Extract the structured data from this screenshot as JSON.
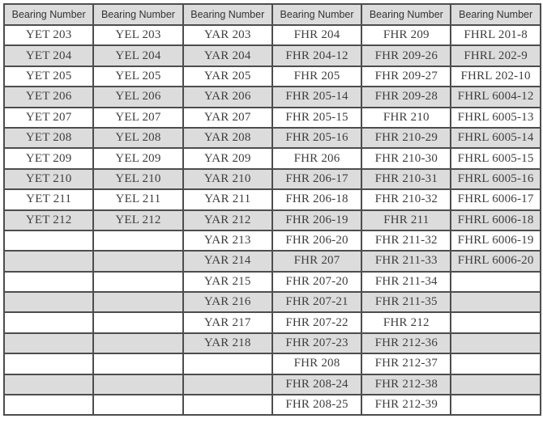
{
  "table": {
    "name": "bearing-number-table",
    "columns": 6,
    "headers": [
      "Bearing Number",
      "Bearing Number",
      "Bearing Number",
      "Bearing Number",
      "Bearing Number",
      "Bearing Number"
    ],
    "rows": [
      [
        "YET 203",
        "YEL 203",
        "YAR 203",
        "FHR 204",
        "FHR 209",
        "FHRL 201-8"
      ],
      [
        "YET 204",
        "YEL 204",
        "YAR 204",
        "FHR 204-12",
        "FHR 209-26",
        "FHRL 202-9"
      ],
      [
        "YET 205",
        "YEL 205",
        "YAR 205",
        "FHR 205",
        "FHR 209-27",
        "FHRL 202-10"
      ],
      [
        "YET 206",
        "YEL 206",
        "YAR 206",
        "FHR 205-14",
        "FHR 209-28",
        "FHRL 6004-12"
      ],
      [
        "YET 207",
        "YEL 207",
        "YAR 207",
        "FHR 205-15",
        "FHR 210",
        "FHRL 6005-13"
      ],
      [
        "YET 208",
        "YEL 208",
        "YAR 208",
        "FHR 205-16",
        "FHR 210-29",
        "FHRL 6005-14"
      ],
      [
        "YET 209",
        "YEL 209",
        "YAR 209",
        "FHR 206",
        "FHR 210-30",
        "FHRL 6005-15"
      ],
      [
        "YET 210",
        "YEL 210",
        "YAR 210",
        "FHR 206-17",
        "FHR 210-31",
        "FHRL 6005-16"
      ],
      [
        "YET 211",
        "YEL 211",
        "YAR 211",
        "FHR 206-18",
        "FHR 210-32",
        "FHRL 6006-17"
      ],
      [
        "YET 212",
        "YEL 212",
        "YAR 212",
        "FHR 206-19",
        "FHR 211",
        "FHRL 6006-18"
      ],
      [
        "",
        "",
        "YAR 213",
        "FHR 206-20",
        "FHR 211-32",
        "FHRL 6006-19"
      ],
      [
        "",
        "",
        "YAR 214",
        "FHR 207",
        "FHR 211-33",
        "FHRL 6006-20"
      ],
      [
        "",
        "",
        "YAR 215",
        "FHR 207-20",
        "FHR 211-34",
        ""
      ],
      [
        "",
        "",
        "YAR 216",
        "FHR 207-21",
        "FHR 211-35",
        ""
      ],
      [
        "",
        "",
        "YAR 217",
        "FHR 207-22",
        "FHR 212",
        ""
      ],
      [
        "",
        "",
        "YAR 218",
        "FHR 207-23",
        "FHR 212-36",
        ""
      ],
      [
        "",
        "",
        "",
        "FHR 208",
        "FHR 212-37",
        ""
      ],
      [
        "",
        "",
        "",
        "FHR 208-24",
        "FHR 212-38",
        ""
      ],
      [
        "",
        "",
        "",
        "FHR 208-25",
        "FHR 212-39",
        ""
      ]
    ],
    "colors": {
      "header_bg": "#dcdcdc",
      "stripe_bg": "#dcdcdc",
      "row_bg": "#ffffff",
      "border": "#4d4d4d",
      "text": "#3e3e3e"
    }
  }
}
